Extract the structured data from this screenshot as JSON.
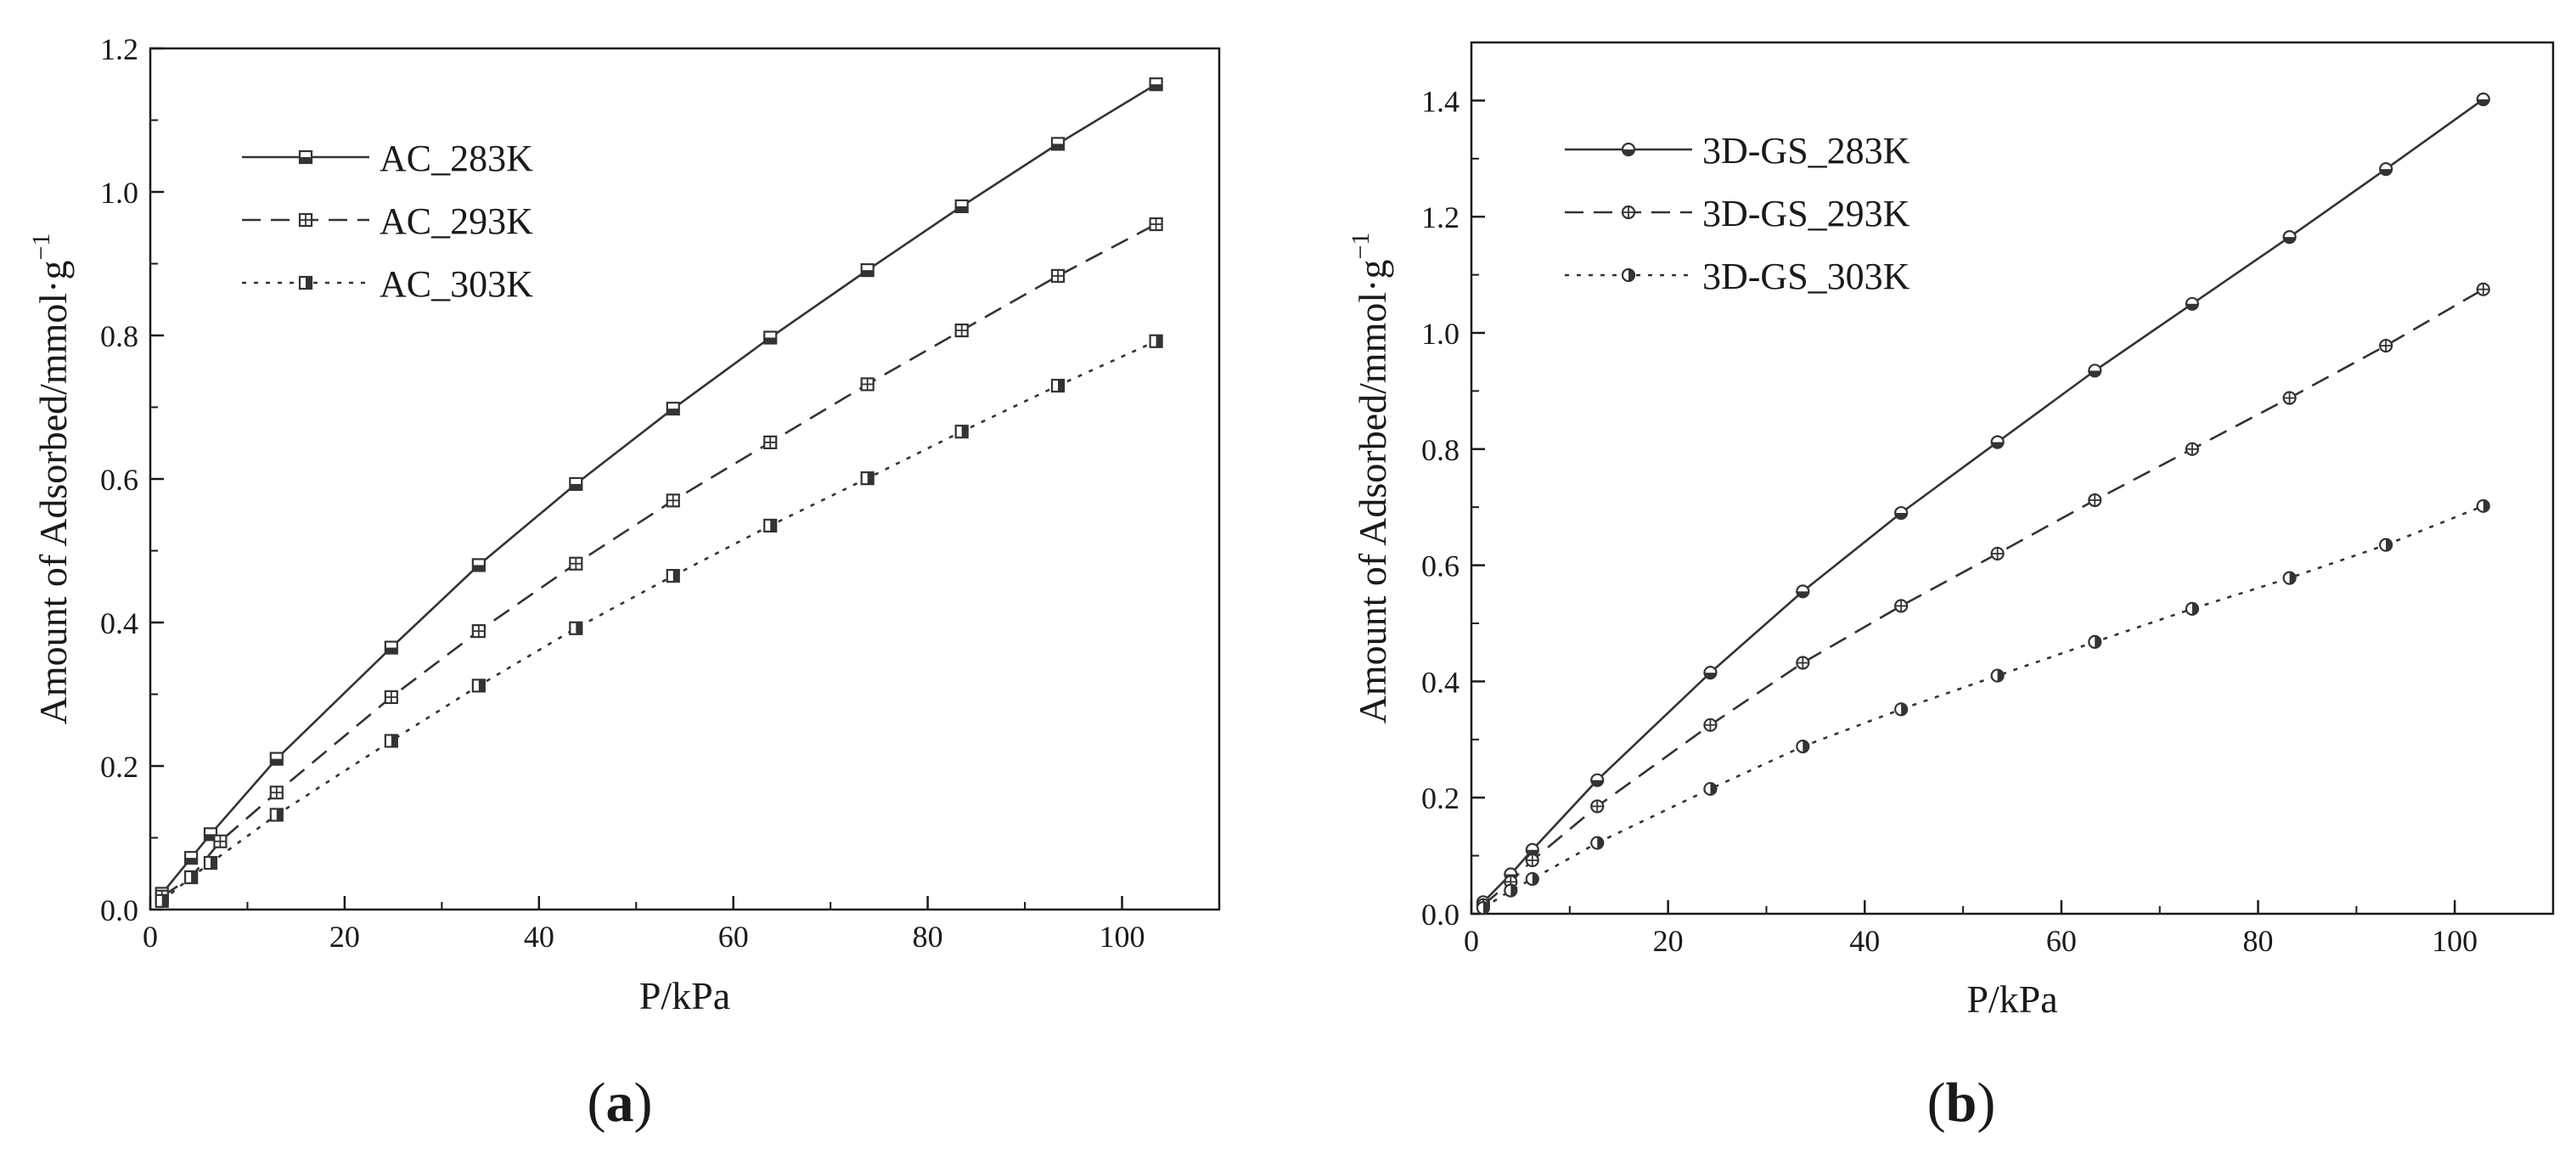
{
  "chart_data": [
    {
      "id": "a",
      "panel_label": "a",
      "type": "line",
      "xlabel": "P/kPa",
      "ylabel": "Amount of Adsorbed/mmol·g",
      "ylabel_superscript": "−1",
      "xlim": [
        0,
        110
      ],
      "ylim": [
        0,
        1.2
      ],
      "xticks": [
        0,
        20,
        40,
        60,
        80,
        100
      ],
      "yticks": [
        0.0,
        0.2,
        0.4,
        0.6,
        0.8,
        1.0,
        1.2
      ],
      "ytick_decimals": 1,
      "marker": "square",
      "legend_position": "top-left",
      "series": [
        {
          "name": "AC_283K",
          "dash": "solid",
          "marker_fill": "half",
          "x": [
            1.2,
            4.2,
            6.2,
            13.0,
            24.8,
            33.8,
            43.8,
            53.8,
            63.8,
            73.8,
            83.5,
            93.4,
            103.5
          ],
          "y": [
            0.022,
            0.072,
            0.105,
            0.21,
            0.365,
            0.48,
            0.593,
            0.698,
            0.797,
            0.891,
            0.98,
            1.067,
            1.15
          ]
        },
        {
          "name": "AC_293K",
          "dash": "dashed",
          "marker_fill": "cross",
          "x": [
            1.2,
            4.2,
            7.2,
            13.0,
            24.8,
            33.8,
            43.8,
            53.8,
            63.8,
            73.8,
            83.5,
            93.4,
            103.5
          ],
          "y": [
            0.018,
            0.045,
            0.095,
            0.163,
            0.296,
            0.388,
            0.482,
            0.57,
            0.651,
            0.732,
            0.807,
            0.883,
            0.955
          ]
        },
        {
          "name": "AC_303K",
          "dash": "dotted",
          "marker_fill": "half-right",
          "x": [
            1.2,
            4.2,
            6.2,
            13.0,
            24.8,
            33.8,
            43.8,
            53.8,
            63.8,
            73.8,
            83.5,
            93.4,
            103.5
          ],
          "y": [
            0.012,
            0.045,
            0.065,
            0.132,
            0.235,
            0.312,
            0.392,
            0.465,
            0.535,
            0.601,
            0.666,
            0.73,
            0.792
          ]
        }
      ]
    },
    {
      "id": "b",
      "panel_label": "b",
      "type": "line",
      "xlabel": "P/kPa",
      "ylabel": "Amount of Adsorbed/mmol·g",
      "ylabel_superscript": "−1",
      "xlim": [
        0,
        110
      ],
      "ylim": [
        0,
        1.5
      ],
      "xticks": [
        0,
        20,
        40,
        60,
        80,
        100
      ],
      "yticks": [
        0.0,
        0.2,
        0.4,
        0.6,
        0.8,
        1.0,
        1.2,
        1.4
      ],
      "ytick_decimals": 1,
      "marker": "circle",
      "legend_position": "top-left",
      "series": [
        {
          "name": "3D-GS_283K",
          "dash": "solid",
          "marker_fill": "half",
          "x": [
            1.2,
            4.0,
            6.2,
            12.8,
            24.3,
            33.7,
            43.7,
            53.5,
            63.4,
            73.3,
            83.2,
            93.0,
            102.9
          ],
          "y": [
            0.02,
            0.068,
            0.11,
            0.23,
            0.415,
            0.555,
            0.69,
            0.812,
            0.935,
            1.05,
            1.165,
            1.282,
            1.402
          ]
        },
        {
          "name": "3D-GS_293K",
          "dash": "dashed",
          "marker_fill": "cross",
          "x": [
            1.2,
            4.0,
            6.2,
            12.8,
            24.3,
            33.7,
            43.7,
            53.5,
            63.4,
            73.3,
            83.2,
            93.0,
            102.9
          ],
          "y": [
            0.015,
            0.055,
            0.092,
            0.185,
            0.325,
            0.432,
            0.53,
            0.62,
            0.712,
            0.8,
            0.888,
            0.978,
            1.075
          ]
        },
        {
          "name": "3D-GS_303K",
          "dash": "dotted",
          "marker_fill": "half-right",
          "x": [
            1.2,
            4.0,
            6.2,
            12.8,
            24.3,
            33.7,
            43.7,
            53.5,
            63.4,
            73.3,
            83.2,
            93.0,
            102.9
          ],
          "y": [
            0.01,
            0.04,
            0.06,
            0.122,
            0.215,
            0.288,
            0.352,
            0.41,
            0.468,
            0.525,
            0.578,
            0.635,
            0.702
          ]
        }
      ]
    }
  ]
}
